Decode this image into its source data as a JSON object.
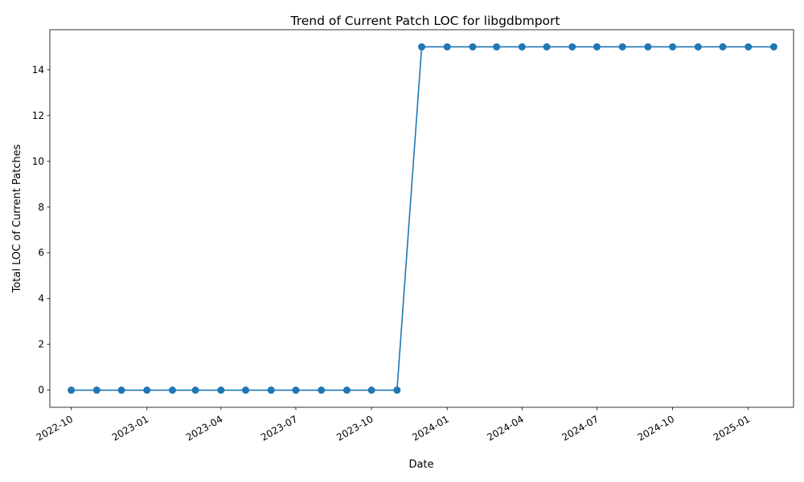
{
  "chart_data": {
    "type": "line",
    "title": "Trend of Current Patch LOC for libgdbmport",
    "xlabel": "Date",
    "ylabel": "Total LOC of Current Patches",
    "x_tick_labels": [
      "2022-10",
      "2023-01",
      "2023-04",
      "2023-07",
      "2023-10",
      "2024-01",
      "2024-04",
      "2024-07",
      "2024-10",
      "2025-01"
    ],
    "y_ticks": [
      0,
      2,
      4,
      6,
      8,
      10,
      12,
      14
    ],
    "ylim": [
      -0.75,
      15.75
    ],
    "xlim": [
      "2022-09-05",
      "2025-02-25"
    ],
    "grid": false,
    "series": [
      {
        "color": "#1f77b4",
        "marker": "circle",
        "x": [
          "2022-10-01",
          "2022-11-01",
          "2022-12-01",
          "2023-01-01",
          "2023-02-01",
          "2023-03-01",
          "2023-04-01",
          "2023-05-01",
          "2023-06-01",
          "2023-07-01",
          "2023-08-01",
          "2023-09-01",
          "2023-10-01",
          "2023-11-01",
          "2023-12-01",
          "2024-01-01",
          "2024-02-01",
          "2024-03-01",
          "2024-04-01",
          "2024-05-01",
          "2024-06-01",
          "2024-07-01",
          "2024-08-01",
          "2024-09-01",
          "2024-10-01",
          "2024-11-01",
          "2024-12-01",
          "2025-01-01",
          "2025-02-01"
        ],
        "values": [
          0,
          0,
          0,
          0,
          0,
          0,
          0,
          0,
          0,
          0,
          0,
          0,
          0,
          0,
          15,
          15,
          15,
          15,
          15,
          15,
          15,
          15,
          15,
          15,
          15,
          15,
          15,
          15,
          15
        ]
      }
    ]
  }
}
